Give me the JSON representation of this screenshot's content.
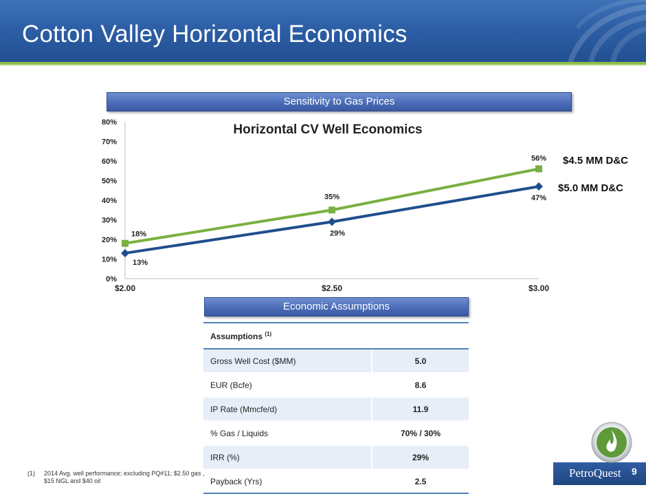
{
  "header": {
    "title": "Cotton Valley Horizontal Economics"
  },
  "banners": {
    "sensitivity": "Sensitivity to Gas Prices",
    "assumptions": "Economic Assumptions"
  },
  "chart_data": {
    "type": "line",
    "title": "Horizontal CV Well Economics",
    "categories": [
      "$2.00",
      "$2.50",
      "$3.00"
    ],
    "y_ticks": [
      "0%",
      "10%",
      "20%",
      "30%",
      "40%",
      "50%",
      "60%",
      "70%",
      "80%"
    ],
    "ylim": [
      0,
      80
    ],
    "grid": false,
    "series": [
      {
        "name": "$4.5 MM D&C",
        "values": [
          18,
          35,
          56
        ],
        "labels": [
          "18%",
          "35%",
          "56%"
        ],
        "color": "#7ab040",
        "marker": "square"
      },
      {
        "name": "$5.0 MM D&C",
        "values": [
          13,
          29,
          47
        ],
        "labels": [
          "13%",
          "29%",
          "47%"
        ],
        "color": "#1f4e8c",
        "marker": "diamond"
      }
    ]
  },
  "assumptions": {
    "header": "Assumptions",
    "header_sup": "(1)",
    "rows": [
      {
        "label": "Gross Well Cost ($MM)",
        "value": "5.0"
      },
      {
        "label": "EUR (Bcfe)",
        "value": "8.6"
      },
      {
        "label": "IP Rate (Mmcfe/d)",
        "value": "11.9"
      },
      {
        "label": "% Gas / Liquids",
        "value": "70% / 30%"
      },
      {
        "label": "IRR (%)",
        "value": "29%"
      },
      {
        "label": "Payback (Yrs)",
        "value": "2.5"
      }
    ]
  },
  "footnote": {
    "number": "(1)",
    "text": "2014 Avg. well performance; excluding PQ#11; $2.50 gas , $15 NGL and $40 oil"
  },
  "footer": {
    "logo_text": "PetroQuest",
    "page_number": "9"
  },
  "colors": {
    "header_blue": "#2d5fa6",
    "accent_green": "#8cc04a",
    "series_green": "#7ab040",
    "series_blue": "#1f4e8c"
  },
  "icons": {
    "logo": "flame-logo-icon"
  }
}
